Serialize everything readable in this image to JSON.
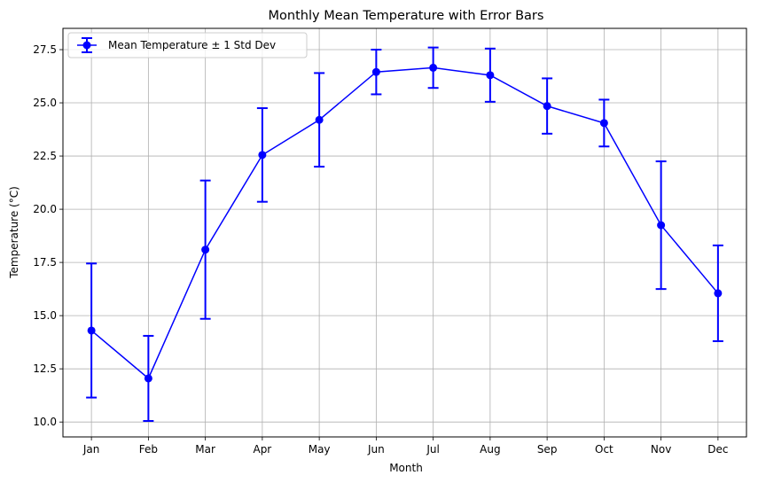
{
  "chart_data": {
    "type": "line",
    "title": "Monthly Mean Temperature with Error Bars",
    "xlabel": "Month",
    "ylabel": "Temperature (°C)",
    "categories": [
      "Jan",
      "Feb",
      "Mar",
      "Apr",
      "May",
      "Jun",
      "Jul",
      "Aug",
      "Sep",
      "Oct",
      "Nov",
      "Dec"
    ],
    "ylim": [
      9.3,
      28.5
    ],
    "yticks": [
      "10.0",
      "12.5",
      "15.0",
      "17.5",
      "20.0",
      "22.5",
      "25.0",
      "27.5"
    ],
    "grid": true,
    "legend_position": "top-left",
    "series": [
      {
        "name": "Mean Temperature ± 1 Std Dev",
        "color": "#0000ff",
        "values": [
          14.3,
          12.05,
          18.1,
          22.55,
          24.2,
          26.45,
          26.65,
          26.3,
          24.85,
          24.05,
          19.25,
          16.05
        ],
        "error": [
          3.15,
          2.0,
          3.25,
          2.2,
          2.2,
          1.05,
          0.95,
          1.25,
          1.3,
          1.1,
          3.0,
          2.25
        ]
      }
    ]
  }
}
